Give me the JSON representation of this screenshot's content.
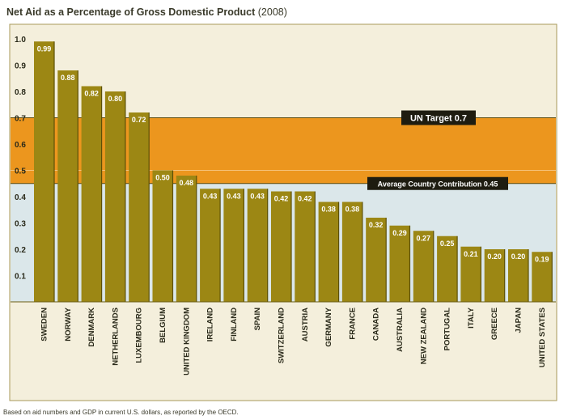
{
  "title": "Net Aid as a Percentage of Gross Domestic Product",
  "title_suffix": "(2008)",
  "footnote": "Based on aid numbers and GDP in current U.S. dollars, as reported by the OECD.",
  "colors": {
    "panel": "#f4efdc",
    "lower_band": "#dbe7ea",
    "target_band": "#ec961e",
    "bar": "#9c8714",
    "bar_dark": "#5c5008",
    "axis_text": "#2a2a1a",
    "label_bg": "#1e1c10"
  },
  "chart_data": {
    "type": "bar",
    "title": "Net Aid as a Percentage of Gross Domestic Product (2008)",
    "categories": [
      "SWEDEN",
      "NORWAY",
      "DENMARK",
      "NETHERLANDS",
      "LUXEMBOURG",
      "BELGIUM",
      "UNITED KINGDOM",
      "IRELAND",
      "FINLAND",
      "SPAIN",
      "SWITZERLAND",
      "AUSTRIA",
      "GERMANY",
      "FRANCE",
      "CANADA",
      "AUSTRALIA",
      "NEW ZEALAND",
      "PORTUGAL",
      "ITALY",
      "GREECE",
      "JAPAN",
      "UNITED STATES"
    ],
    "values": [
      0.99,
      0.88,
      0.82,
      0.8,
      0.72,
      0.5,
      0.48,
      0.43,
      0.43,
      0.43,
      0.42,
      0.42,
      0.38,
      0.38,
      0.32,
      0.29,
      0.27,
      0.25,
      0.21,
      0.2,
      0.2,
      0.19
    ],
    "value_labels": [
      "0.99",
      "0.88",
      "0.82",
      "0.80",
      "0.72",
      "0.50",
      "0.48",
      "0.43",
      "0.43",
      "0.43",
      "0.42",
      "0.42",
      "0.38",
      "0.38",
      "0.32",
      "0.29",
      "0.27",
      "0.25",
      "0.21",
      "0.20",
      "0.20",
      "0.19"
    ],
    "ylim": [
      0,
      1.0
    ],
    "yticks": [
      0.1,
      0.2,
      0.3,
      0.4,
      0.5,
      0.6,
      0.7,
      0.8,
      0.9,
      1.0
    ],
    "ytick_labels": [
      "0.1",
      "0.2",
      "0.3",
      "0.4",
      "0.5",
      "0.6",
      "0.7",
      "0.8",
      "0.9",
      "1.0"
    ],
    "reference_lines": [
      {
        "label": "UN Target 0.7",
        "value": 0.7
      },
      {
        "label": "Average Country Contribution 0.45",
        "value": 0.45
      }
    ],
    "xlabel": "",
    "ylabel": ""
  }
}
